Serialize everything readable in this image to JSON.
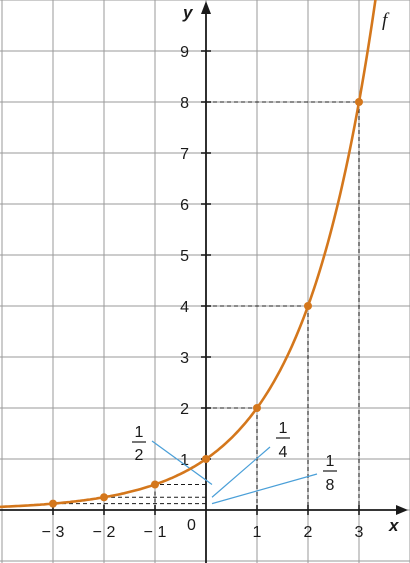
{
  "chart_data": {
    "type": "line",
    "function_label": "f",
    "xlabel": "x",
    "ylabel": "y",
    "origin_label": "0",
    "xlim": [
      -4,
      4
    ],
    "ylim": [
      -1,
      10
    ],
    "grid": true,
    "x_tick_labels": [
      {
        "value": -3,
        "label": "− 3"
      },
      {
        "value": -2,
        "label": "− 2"
      },
      {
        "value": -1,
        "label": "− 1"
      },
      {
        "value": 1,
        "label": "1"
      },
      {
        "value": 2,
        "label": "2"
      },
      {
        "value": 3,
        "label": "3"
      }
    ],
    "y_tick_labels": [
      {
        "value": 1,
        "label": "1"
      },
      {
        "value": 2,
        "label": "2"
      },
      {
        "value": 3,
        "label": "3"
      },
      {
        "value": 4,
        "label": "4"
      },
      {
        "value": 5,
        "label": "5"
      },
      {
        "value": 6,
        "label": "6"
      },
      {
        "value": 7,
        "label": "7"
      },
      {
        "value": 8,
        "label": "8"
      },
      {
        "value": 9,
        "label": "9"
      }
    ],
    "series": [
      {
        "label": "f",
        "base": 2,
        "points": [
          {
            "x": -3,
            "y": 0.125
          },
          {
            "x": -2,
            "y": 0.25
          },
          {
            "x": -1,
            "y": 0.5
          },
          {
            "x": 0,
            "y": 1
          },
          {
            "x": 1,
            "y": 2
          },
          {
            "x": 2,
            "y": 4
          },
          {
            "x": 3,
            "y": 8
          }
        ]
      }
    ],
    "fraction_annotations": [
      {
        "numerator": "1",
        "denominator": "2",
        "value": 0.5
      },
      {
        "numerator": "1",
        "denominator": "4",
        "value": 0.25
      },
      {
        "numerator": "1",
        "denominator": "8",
        "value": 0.125
      }
    ]
  },
  "colors": {
    "curve": "#d4771c",
    "grid": "#9a9a9a",
    "axis": "#1a1a1a",
    "pointer": "#4a9fd8",
    "dashed": "#1a1a1a"
  }
}
